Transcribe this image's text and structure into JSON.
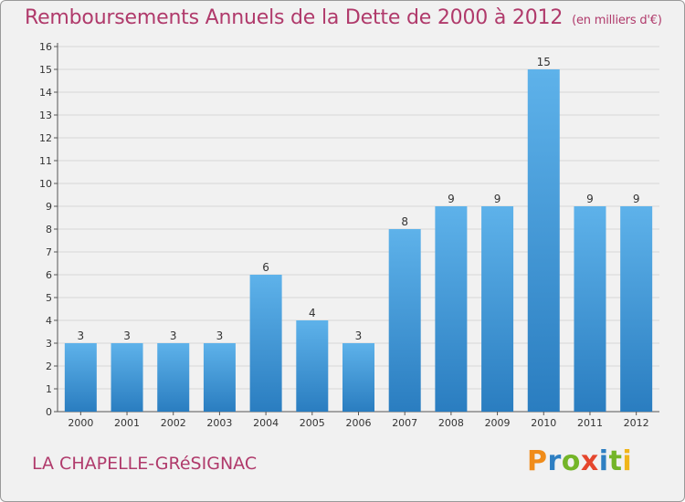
{
  "title": "Remboursements Annuels de la Dette de 2000 à 2012",
  "unit_note": "(en milliers d'€)",
  "commune": "LA CHAPELLE-GRéSIGNAC",
  "brand": {
    "letters": [
      "P",
      "r",
      "o",
      "x",
      "i",
      "t",
      "i"
    ],
    "colors": [
      "#f08c1a",
      "#2e7fc2",
      "#74b528",
      "#e5462d",
      "#2e7fc2",
      "#74b528",
      "#f0b51a"
    ]
  },
  "colors": {
    "accent": "#b03a6b",
    "bar_light": "#5eb2ea",
    "bar_dark": "#2a7dc0",
    "background": "#f1f1f1",
    "grid": "#d8d8d8"
  },
  "chart_data": {
    "type": "bar",
    "categories": [
      "2000",
      "2001",
      "2002",
      "2003",
      "2004",
      "2005",
      "2006",
      "2007",
      "2008",
      "2009",
      "2010",
      "2011",
      "2012"
    ],
    "values": [
      3,
      3,
      3,
      3,
      6,
      4,
      3,
      8,
      9,
      9,
      15,
      9,
      9
    ],
    "data_labels": [
      "3",
      "3",
      "3",
      "3",
      "6",
      "4",
      "3",
      "8",
      "9",
      "9",
      "15",
      "9",
      "9"
    ],
    "yticks": [
      0,
      1,
      2,
      3,
      4,
      5,
      6,
      7,
      8,
      9,
      10,
      11,
      12,
      13,
      14,
      15,
      16
    ],
    "ylim": [
      0,
      16
    ],
    "grid": true,
    "legend": "none"
  }
}
